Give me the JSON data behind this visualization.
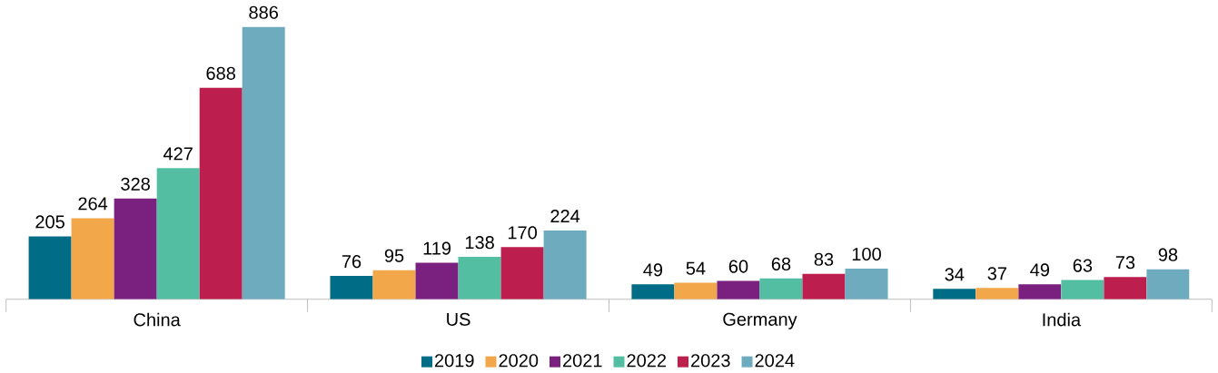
{
  "chart_data": {
    "type": "bar",
    "categories": [
      "China",
      "US",
      "Germany",
      "India"
    ],
    "series": [
      {
        "name": "2019",
        "color": "#006c86",
        "values": [
          205,
          76,
          49,
          34
        ]
      },
      {
        "name": "2020",
        "color": "#f2a84a",
        "values": [
          264,
          95,
          54,
          37
        ]
      },
      {
        "name": "2021",
        "color": "#7a2180",
        "values": [
          328,
          119,
          60,
          49
        ]
      },
      {
        "name": "2022",
        "color": "#54bea3",
        "values": [
          427,
          138,
          68,
          63
        ]
      },
      {
        "name": "2023",
        "color": "#bc1f4e",
        "values": [
          688,
          170,
          83,
          73
        ]
      },
      {
        "name": "2024",
        "color": "#6fabbe",
        "values": [
          886,
          224,
          100,
          98
        ]
      }
    ],
    "data_labels": true,
    "legend": "bottom"
  }
}
